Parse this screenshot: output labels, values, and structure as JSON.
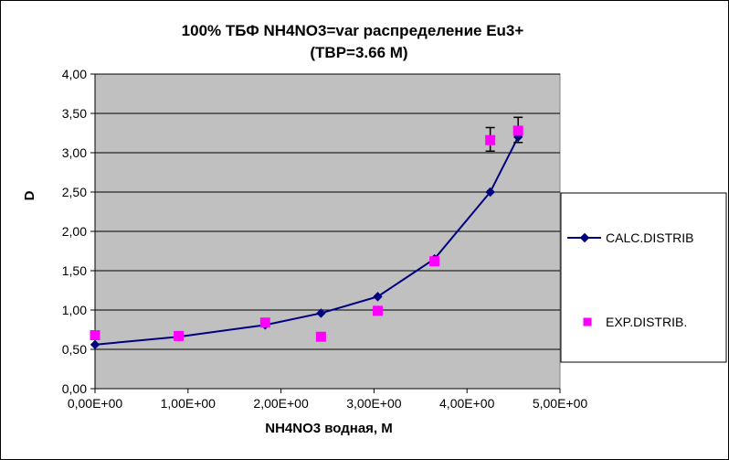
{
  "chart_data": {
    "type": "line",
    "title": "100%  ТБФ  NH4NO3=var распределение Eu3+",
    "subtitle": "(TBP=3.66 M)",
    "xlabel": "NH4NO3  водная, М",
    "ylabel": "D",
    "xlim": [
      0,
      5
    ],
    "ylim": [
      0,
      4
    ],
    "x_ticks": [
      "0,00E+00",
      "1,00E+00",
      "2,00E+00",
      "3,00E+00",
      "4,00E+00",
      "5,00E+00"
    ],
    "y_ticks": [
      "0,00",
      "0,50",
      "1,00",
      "1,50",
      "2,00",
      "2,50",
      "3,00",
      "3,50",
      "4,00"
    ],
    "grid": true,
    "legend_position": "right",
    "plot_background": "#c0c0c0",
    "series": [
      {
        "name": "CALC.DISTRIB",
        "style": "line-diamond",
        "color": "#000080",
        "x": [
          0.0,
          0.9,
          1.83,
          2.43,
          3.04,
          3.65,
          4.25,
          4.55
        ],
        "y": [
          0.56,
          0.66,
          0.81,
          0.96,
          1.17,
          1.65,
          2.5,
          3.2
        ]
      },
      {
        "name": "EXP.DISTRIB.",
        "style": "square",
        "color": "#ff00ff",
        "x": [
          0.0,
          0.9,
          1.83,
          2.43,
          3.04,
          3.65,
          4.25,
          4.55
        ],
        "y": [
          0.68,
          0.67,
          0.84,
          0.66,
          0.99,
          1.62,
          3.16,
          3.28
        ],
        "error_bars": [
          {
            "x": 4.25,
            "low": 3.02,
            "high": 3.32
          },
          {
            "x": 4.55,
            "low": 3.13,
            "high": 3.45
          }
        ]
      }
    ]
  }
}
